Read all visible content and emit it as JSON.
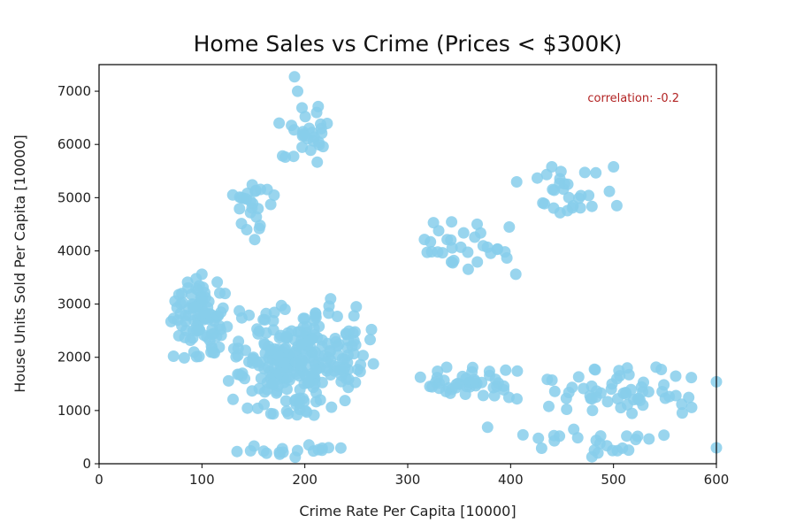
{
  "chart_data": {
    "type": "scatter",
    "title": "Home Sales vs Crime (Prices < $300K)",
    "xlabel": "Crime Rate Per Capita [10000]",
    "ylabel": "House Units Sold Per Capita [10000]",
    "xlim": [
      0,
      600
    ],
    "ylim": [
      0,
      7500
    ],
    "xticks": [
      0,
      100,
      200,
      300,
      400,
      500,
      600
    ],
    "yticks": [
      0,
      1000,
      2000,
      3000,
      4000,
      5000,
      6000,
      7000
    ],
    "grid": false,
    "annotation": {
      "text": "correlation: -0.2",
      "color": "#b22222"
    },
    "marker_color": "#87ceeb",
    "clusters": [
      {
        "x": [
          65,
          130
        ],
        "y": [
          1800,
          3600
        ],
        "count": 90
      },
      {
        "x": [
          120,
          270
        ],
        "y": [
          800,
          3100
        ],
        "count": 260
      },
      {
        "x": [
          125,
          175
        ],
        "y": [
          4200,
          5400
        ],
        "count": 24
      },
      {
        "x": [
          170,
          240
        ],
        "y": [
          5600,
          6800
        ],
        "count": 28
      },
      {
        "x": [
          300,
          410
        ],
        "y": [
          3600,
          4600
        ],
        "count": 30
      },
      {
        "x": [
          400,
          510
        ],
        "y": [
          4600,
          5600
        ],
        "count": 28
      },
      {
        "x": [
          300,
          410
        ],
        "y": [
          1200,
          1900
        ],
        "count": 45
      },
      {
        "x": [
          400,
          600
        ],
        "y": [
          800,
          1900
        ],
        "count": 60
      },
      {
        "x": [
          130,
          240
        ],
        "y": [
          100,
          400
        ],
        "count": 18
      },
      {
        "x": [
          350,
          600
        ],
        "y": [
          50,
          700
        ],
        "count": 25
      }
    ],
    "points": [
      {
        "x": 190,
        "y": 7270
      },
      {
        "x": 193,
        "y": 7000
      },
      {
        "x": 175,
        "y": 6400
      },
      {
        "x": 250,
        "y": 2950
      },
      {
        "x": 225,
        "y": 3100
      },
      {
        "x": 100,
        "y": 3560
      },
      {
        "x": 70,
        "y": 2670
      },
      {
        "x": 130,
        "y": 5050
      },
      {
        "x": 325,
        "y": 4530
      },
      {
        "x": 440,
        "y": 5580
      },
      {
        "x": 500,
        "y": 5580
      },
      {
        "x": 405,
        "y": 3560
      },
      {
        "x": 600,
        "y": 1540
      },
      {
        "x": 600,
        "y": 300
      },
      {
        "x": 150,
        "y": 2000
      },
      {
        "x": 180,
        "y": 1900
      },
      {
        "x": 210,
        "y": 2100
      },
      {
        "x": 95,
        "y": 2500
      }
    ]
  }
}
